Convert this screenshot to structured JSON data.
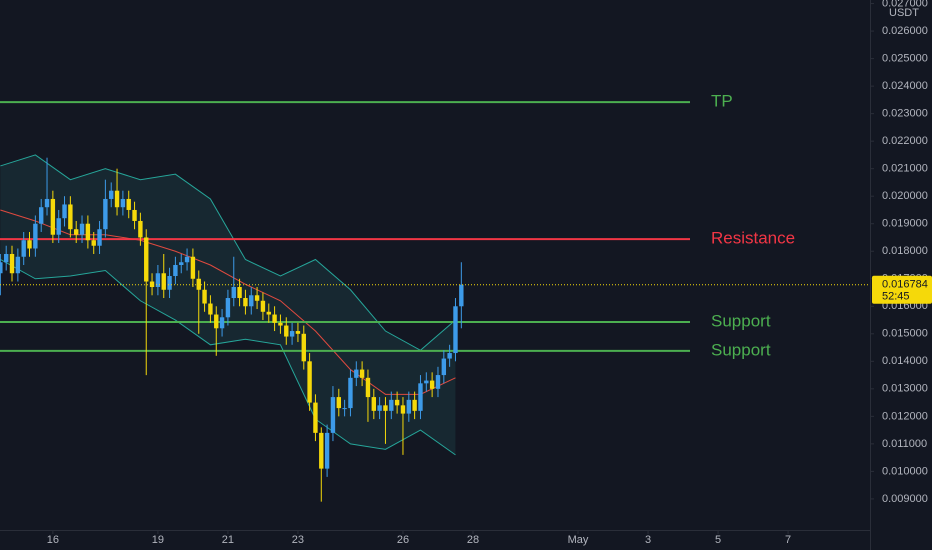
{
  "chart_data": {
    "type": "candlestick",
    "currency": "USDT",
    "x": [
      14.5,
      14.667,
      14.833,
      15,
      15.167,
      15.333,
      15.5,
      15.667,
      15.833,
      16,
      16.167,
      16.333,
      16.5,
      16.667,
      16.833,
      17,
      17.167,
      17.333,
      17.5,
      17.667,
      17.833,
      18,
      18.167,
      18.333,
      18.5,
      18.667,
      18.833,
      19,
      19.167,
      19.333,
      19.5,
      19.667,
      19.833,
      20,
      20.167,
      20.333,
      20.5,
      20.667,
      20.833,
      21,
      21.167,
      21.333,
      21.5,
      21.667,
      21.833,
      22,
      22.167,
      22.333,
      22.5,
      22.667,
      22.833,
      23,
      23.167,
      23.333,
      23.5,
      23.667,
      23.833,
      24,
      24.167,
      24.333,
      24.5,
      24.667,
      24.833,
      25,
      25.167,
      25.333,
      25.5,
      25.667,
      25.833,
      26,
      26.167,
      26.333,
      26.5,
      26.667,
      26.833,
      27,
      27.167,
      27.333,
      27.5,
      27.667
    ],
    "open": [
      0.0172,
      0.0176,
      0.0179,
      0.0172,
      0.0178,
      0.0184,
      0.0181,
      0.019,
      0.0196,
      0.0199,
      0.0186,
      0.0192,
      0.0197,
      0.0188,
      0.0186,
      0.019,
      0.0184,
      0.0182,
      0.0188,
      0.0199,
      0.0202,
      0.0196,
      0.0199,
      0.0195,
      0.0191,
      0.0185,
      0.0169,
      0.0167,
      0.0172,
      0.0166,
      0.0171,
      0.0175,
      0.0176,
      0.0178,
      0.017,
      0.0166,
      0.0161,
      0.0157,
      0.0152,
      0.0156,
      0.0163,
      0.0167,
      0.0163,
      0.016,
      0.0164,
      0.0162,
      0.0158,
      0.0157,
      0.0154,
      0.0153,
      0.0149,
      0.0151,
      0.015,
      0.014,
      0.0125,
      0.0114,
      0.0101,
      0.0114,
      0.0127,
      0.0123,
      0.0123,
      0.0134,
      0.0137,
      0.0134,
      0.0127,
      0.0122,
      0.0124,
      0.0122,
      0.0126,
      0.0124,
      0.0121,
      0.0126,
      0.0122,
      0.0132,
      0.0133,
      0.013,
      0.0135,
      0.0141,
      0.0143,
      0.016
    ],
    "high": [
      0.0179,
      0.0182,
      0.0182,
      0.0181,
      0.0187,
      0.0187,
      0.0193,
      0.0199,
      0.0214,
      0.0202,
      0.0195,
      0.02,
      0.02,
      0.0191,
      0.0193,
      0.0193,
      0.0187,
      0.0191,
      0.0206,
      0.0205,
      0.021,
      0.0202,
      0.0202,
      0.0198,
      0.0194,
      0.0188,
      0.0172,
      0.0175,
      0.0179,
      0.0174,
      0.0178,
      0.0179,
      0.0181,
      0.0181,
      0.0173,
      0.0169,
      0.0164,
      0.016,
      0.0159,
      0.0166,
      0.0178,
      0.017,
      0.0166,
      0.0167,
      0.0167,
      0.0165,
      0.0161,
      0.016,
      0.0157,
      0.0156,
      0.0154,
      0.0154,
      0.0153,
      0.0143,
      0.0128,
      0.0116,
      0.0117,
      0.0131,
      0.013,
      0.0126,
      0.0137,
      0.014,
      0.014,
      0.0137,
      0.013,
      0.0127,
      0.0127,
      0.0129,
      0.0129,
      0.0127,
      0.0129,
      0.0129,
      0.0135,
      0.0136,
      0.0136,
      0.0138,
      0.0144,
      0.0146,
      0.0163,
      0.0176
    ],
    "low": [
      0.0164,
      0.0173,
      0.0169,
      0.0169,
      0.0175,
      0.0178,
      0.0178,
      0.0187,
      0.0193,
      0.0183,
      0.0183,
      0.0189,
      0.0185,
      0.0183,
      0.0183,
      0.0181,
      0.0179,
      0.0179,
      0.0185,
      0.0196,
      0.0193,
      0.0193,
      0.0192,
      0.0188,
      0.0182,
      0.0135,
      0.0164,
      0.0164,
      0.0163,
      0.0163,
      0.0168,
      0.0172,
      0.0173,
      0.0167,
      0.015,
      0.0158,
      0.0154,
      0.0142,
      0.0149,
      0.0153,
      0.016,
      0.016,
      0.0157,
      0.0157,
      0.0159,
      0.0155,
      0.0154,
      0.0151,
      0.015,
      0.0146,
      0.0146,
      0.0147,
      0.0137,
      0.0122,
      0.0111,
      0.0089,
      0.0098,
      0.0111,
      0.012,
      0.012,
      0.012,
      0.0131,
      0.0131,
      0.0118,
      0.0119,
      0.0119,
      0.011,
      0.0119,
      0.0121,
      0.0106,
      0.0118,
      0.0119,
      0.0119,
      0.0129,
      0.0127,
      0.0127,
      0.0132,
      0.0138,
      0.014,
      0.0152
    ],
    "close": [
      0.0176,
      0.0179,
      0.0172,
      0.0178,
      0.0184,
      0.0181,
      0.019,
      0.0196,
      0.0199,
      0.0186,
      0.0192,
      0.0197,
      0.0188,
      0.0186,
      0.019,
      0.0184,
      0.0182,
      0.0188,
      0.0199,
      0.0202,
      0.0196,
      0.0199,
      0.0195,
      0.0191,
      0.0185,
      0.0169,
      0.0167,
      0.0172,
      0.0166,
      0.0171,
      0.0175,
      0.0176,
      0.0178,
      0.017,
      0.0166,
      0.0161,
      0.0157,
      0.0152,
      0.0156,
      0.0163,
      0.0167,
      0.0163,
      0.016,
      0.0164,
      0.0162,
      0.0158,
      0.0157,
      0.0154,
      0.0153,
      0.0149,
      0.0151,
      0.015,
      0.014,
      0.0125,
      0.0114,
      0.0101,
      0.0114,
      0.0127,
      0.0123,
      0.0123,
      0.0134,
      0.0137,
      0.0134,
      0.0127,
      0.0122,
      0.0124,
      0.0122,
      0.0126,
      0.0124,
      0.0121,
      0.0126,
      0.0122,
      0.0132,
      0.0133,
      0.013,
      0.0135,
      0.0141,
      0.0143,
      0.016,
      0.016784
    ],
    "up_color": "#3d9be9",
    "down_color": "#f5d90a",
    "overlays": [
      {
        "role": "upper",
        "color": "#26a69a",
        "x": [
          14.5,
          15.5,
          16.5,
          17.5,
          18.5,
          19.5,
          20.5,
          21.5,
          22.5,
          23.5,
          24.5,
          25.5,
          26.5,
          27.5
        ],
        "values": [
          0.0211,
          0.0215,
          0.0206,
          0.021,
          0.0206,
          0.0208,
          0.0199,
          0.0177,
          0.0171,
          0.0177,
          0.0166,
          0.0151,
          0.0144,
          0.0155
        ]
      },
      {
        "role": "lower",
        "color": "#26a69a",
        "x": [
          14.5,
          15.5,
          16.5,
          17.5,
          18.5,
          19.5,
          20.5,
          21.5,
          22.5,
          23.5,
          24.5,
          25.5,
          26.5,
          27.5
        ],
        "values": [
          0.0177,
          0.017,
          0.0171,
          0.0173,
          0.0162,
          0.0155,
          0.0146,
          0.0148,
          0.0146,
          0.0119,
          0.011,
          0.0108,
          0.0115,
          0.0106
        ]
      },
      {
        "role": "basis",
        "color": "#e04a3f",
        "x": [
          14.5,
          15.5,
          16.5,
          17.5,
          18.5,
          19.5,
          20.5,
          21.5,
          22.5,
          23.5,
          24.5,
          25.5,
          26.5,
          27.5
        ],
        "values": [
          0.0195,
          0.0191,
          0.0186,
          0.0186,
          0.0184,
          0.018,
          0.0175,
          0.0168,
          0.0162,
          0.0151,
          0.0137,
          0.0128,
          0.0128,
          0.0134
        ]
      }
    ],
    "band_fill": "#1b3a3f",
    "levels": [
      {
        "label": "TP",
        "value": 0.02342,
        "color": "#4caf50"
      },
      {
        "label": "Resistance",
        "value": 0.01844,
        "color": "#f23645"
      },
      {
        "label": "Support",
        "value": 0.01543,
        "color": "#4caf50"
      },
      {
        "label": "Support",
        "value": 0.01438,
        "color": "#4caf50"
      }
    ],
    "last_price": {
      "value": 0.016784,
      "countdown": "52:45"
    },
    "xlim": [
      14.49,
      39.34
    ],
    "xticks": [
      16,
      19,
      21,
      23,
      26,
      28,
      {
        "value": 31,
        "label": "May"
      },
      {
        "value": 33,
        "label": "3"
      },
      {
        "value": 35,
        "label": "5"
      },
      {
        "value": 37,
        "label": "7"
      }
    ],
    "ylim": [
      0.00787,
      0.02713
    ],
    "yticks": [
      {
        "value": 0.009,
        "label": "0.009000"
      },
      {
        "value": 0.01,
        "label": "0.010000"
      },
      {
        "value": 0.011,
        "label": "0.011000"
      },
      {
        "value": 0.012,
        "label": "0.012000"
      },
      {
        "value": 0.013,
        "label": "0.013000"
      },
      {
        "value": 0.014,
        "label": "0.014000"
      },
      {
        "value": 0.015,
        "label": "0.015000"
      },
      {
        "value": 0.016,
        "label": "0.016000"
      },
      {
        "value": 0.017,
        "label": "0.017000"
      },
      {
        "value": 0.018,
        "label": "0.018000"
      },
      {
        "value": 0.019,
        "label": "0.019000"
      },
      {
        "value": 0.02,
        "label": "0.020000"
      },
      {
        "value": 0.021,
        "label": "0.021000"
      },
      {
        "value": 0.022,
        "label": "0.022000"
      },
      {
        "value": 0.023,
        "label": "0.023000"
      },
      {
        "value": 0.024,
        "label": "0.024000"
      },
      {
        "value": 0.025,
        "label": "0.025000"
      },
      {
        "value": 0.026,
        "label": "0.026000"
      },
      {
        "value": 0.027,
        "label": "0.027000"
      }
    ]
  }
}
